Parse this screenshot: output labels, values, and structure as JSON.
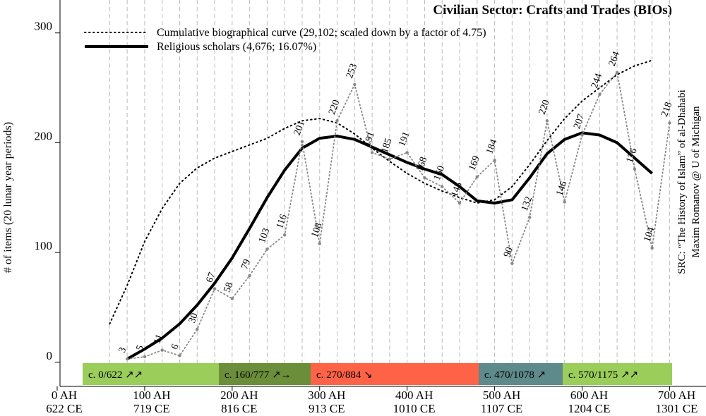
{
  "chart_data": {
    "type": "line",
    "title": "Civilian Sector: Crafts and Trades (BIOs)",
    "ylabel": "# of items (20 lunar year periods)",
    "source": "SRC: “The History of Islam” of al-Dhahabi",
    "author": "Maxim Romanov @ U of Michigan",
    "x": [
      60,
      80,
      100,
      120,
      140,
      160,
      180,
      200,
      220,
      240,
      260,
      280,
      300,
      320,
      340,
      360,
      380,
      400,
      420,
      440,
      460,
      480,
      500,
      520,
      540,
      560,
      580,
      600,
      620,
      640,
      660,
      680,
      700
    ],
    "series": [
      {
        "name": "Cumulative biographical curve (29,102; scaled down by a factor of 4.75)",
        "color": "#000000",
        "style": "dotted",
        "values": [
          35,
          70,
          110,
          140,
          163,
          177,
          186,
          192,
          198,
          204,
          213,
          220,
          222,
          218,
          208,
          195,
          183,
          172,
          163,
          156,
          150,
          145,
          148,
          160,
          180,
          202,
          222,
          238,
          250,
          262,
          270,
          275,
          null
        ]
      },
      {
        "name": "Religious scholars (4,676; 16.07%)",
        "color": "#000000",
        "style": "thick",
        "values": [
          null,
          3,
          12,
          22,
          35,
          52,
          72,
          95,
          122,
          150,
          175,
          195,
          204,
          206,
          203,
          196,
          189,
          182,
          176,
          171,
          160,
          147,
          145,
          148,
          168,
          190,
          203,
          209,
          207,
          200,
          186,
          172,
          null
        ]
      },
      {
        "color": "#888888",
        "style": "points",
        "values": [
          null,
          3,
          5,
          11,
          6,
          30,
          67,
          58,
          79,
          103,
          116,
          201,
          108,
          220,
          253,
          191,
          185,
          191,
          168,
          160,
          145,
          169,
          184,
          90,
          132,
          220,
          146,
          207,
          244,
          264,
          176,
          104,
          218
        ]
      }
    ],
    "xlim": [
      0,
      740
    ],
    "ylim": [
      -22,
      330
    ],
    "yticks": [
      0,
      100,
      200,
      300
    ],
    "xticks": [
      {
        "value": 0,
        "label": "0 AH",
        "label2": "622 CE"
      },
      {
        "value": 100,
        "label": "100 AH",
        "label2": "719 CE"
      },
      {
        "value": 200,
        "label": "200 AH",
        "label2": "816 CE"
      },
      {
        "value": 300,
        "label": "300 AH",
        "label2": "913 CE"
      },
      {
        "value": 400,
        "label": "400 AH",
        "label2": "1010 CE"
      },
      {
        "value": 500,
        "label": "500 AH",
        "label2": "1107 CE"
      },
      {
        "value": 600,
        "label": "600 AH",
        "label2": "1204 CE"
      },
      {
        "value": 700,
        "label": "700 AH",
        "label2": "1301 CE"
      }
    ],
    "bands": [
      {
        "label": "c. 0/622 ↗↗",
        "color": "#9acd5a"
      },
      {
        "label": "c. 160/777 ↗→",
        "color": "#6b8e3a"
      },
      {
        "label": "c. 270/884 ↘",
        "color": "#ff6347"
      },
      {
        "label": "c. 470/1078 ↗",
        "color": "#5f8a8b"
      },
      {
        "label": "c. 570/1175 ↗↗",
        "color": "#9acd5a"
      }
    ],
    "grid": true
  }
}
